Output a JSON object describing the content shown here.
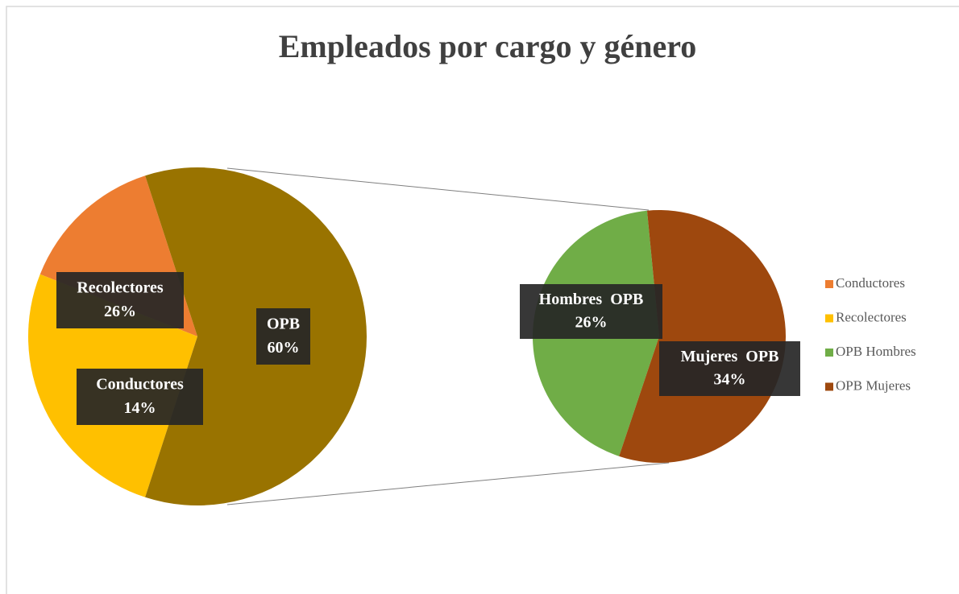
{
  "chart_data": {
    "type": "pie-of-pie",
    "title": "Empleados por cargo y género",
    "pie": {
      "categories": [
        "Conductores",
        "Recolectores",
        "OPB"
      ],
      "values": [
        14,
        26,
        60
      ],
      "value_labels": [
        "14%",
        "26%",
        "60%"
      ],
      "colors": [
        "#ed7d31",
        "#ffc000",
        "#997300"
      ],
      "split": 2
    },
    "subpie": {
      "categories": [
        "Hombres  OPB",
        "Mujeres  OPB"
      ],
      "values": [
        26,
        34
      ],
      "value_labels": [
        "26%",
        "34%"
      ],
      "colors": [
        "#70ad47",
        "#9e480e"
      ]
    },
    "legend": {
      "entries": [
        "Conductores",
        "Recolectores",
        "OPB Hombres",
        "OPB Mujeres"
      ],
      "position": "right"
    }
  }
}
